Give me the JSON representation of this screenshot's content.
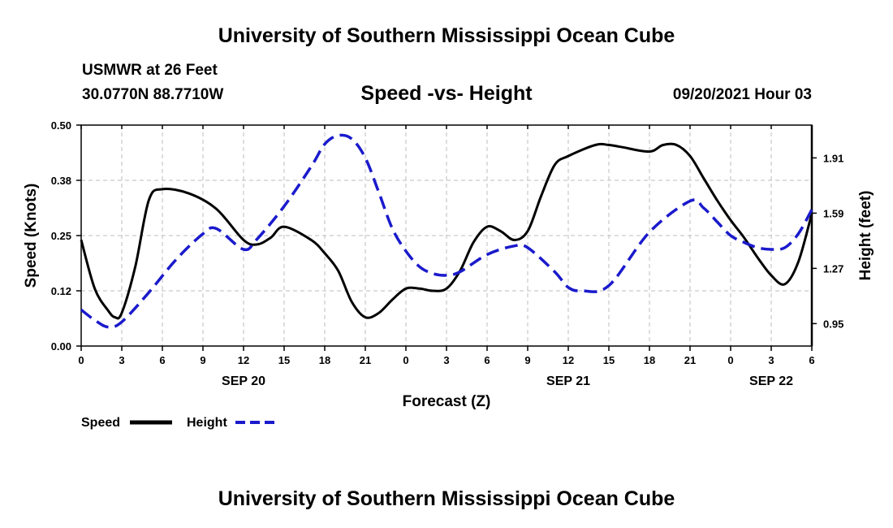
{
  "header": {
    "title": "University of Southern Mississippi Ocean Cube",
    "station": "USMWR at 26 Feet",
    "coords": "30.0770N  88.7710W",
    "chart_title": "Speed -vs- Height",
    "datetime": "09/20/2021 Hour 03"
  },
  "footer": {
    "title": "University of Southern Mississippi Ocean Cube"
  },
  "colors": {
    "speed": "#000000",
    "height": "#1a1acc",
    "grid": "#bdbdbd"
  },
  "chart_data": {
    "type": "line",
    "title": "Speed -vs- Height",
    "xlabel": "Forecast (Z)",
    "ylabel": "Speed (Knots)",
    "y2label": "Height (feet)",
    "xlim": [
      0,
      54
    ],
    "ylim": [
      0,
      0.5
    ],
    "y2lim": [
      0.82,
      2.1
    ],
    "x_ticks": [
      0,
      3,
      6,
      9,
      12,
      15,
      18,
      21,
      24,
      27,
      30,
      33,
      36,
      39,
      42,
      45,
      48,
      51,
      54
    ],
    "x_tick_labels": [
      "0",
      "3",
      "6",
      "9",
      "12",
      "15",
      "18",
      "21",
      "0",
      "3",
      "6",
      "9",
      "12",
      "15",
      "18",
      "21",
      "0",
      "3",
      "6"
    ],
    "date_labels": [
      {
        "x": 12,
        "label": "SEP 20"
      },
      {
        "x": 36,
        "label": "SEP 21"
      },
      {
        "x": 51,
        "label": "SEP 22"
      }
    ],
    "y_ticks": [
      0,
      0.125,
      0.25,
      0.375,
      0.5
    ],
    "y_tick_labels": [
      "0.00",
      "0.12",
      "0.25",
      "0.38",
      "0.50"
    ],
    "y2_ticks": [
      0.95,
      1.27,
      1.59,
      1.91
    ],
    "y2_tick_labels": [
      "0.95",
      "1.27",
      "1.59",
      "1.91"
    ],
    "grid": true,
    "legend": {
      "position": "bottom-left"
    },
    "series": [
      {
        "name": "Speed",
        "axis": "left",
        "style": "solid",
        "x": [
          0,
          1,
          2,
          2.5,
          3,
          4,
          5,
          6,
          8,
          10,
          12,
          13,
          14,
          15,
          17,
          18,
          19,
          20,
          21,
          22,
          23,
          24,
          25,
          26,
          27,
          28,
          29,
          30,
          31,
          32,
          33,
          34,
          35,
          36,
          38,
          39,
          40,
          42,
          43,
          44,
          45,
          46,
          47,
          48,
          49,
          50,
          51,
          52,
          53,
          54
        ],
        "y": [
          0.24,
          0.13,
          0.08,
          0.065,
          0.075,
          0.18,
          0.33,
          0.355,
          0.345,
          0.31,
          0.24,
          0.23,
          0.245,
          0.27,
          0.24,
          0.21,
          0.17,
          0.1,
          0.065,
          0.075,
          0.105,
          0.13,
          0.13,
          0.125,
          0.13,
          0.17,
          0.235,
          0.27,
          0.26,
          0.24,
          0.26,
          0.34,
          0.41,
          0.43,
          0.455,
          0.455,
          0.45,
          0.44,
          0.455,
          0.455,
          0.43,
          0.38,
          0.33,
          0.285,
          0.245,
          0.2,
          0.16,
          0.14,
          0.19,
          0.3
        ]
      },
      {
        "name": "Height",
        "axis": "right",
        "style": "dashed",
        "x": [
          0,
          1,
          2,
          3,
          5,
          7,
          9,
          10,
          12,
          13,
          15,
          17,
          18,
          19,
          20,
          21,
          22,
          23,
          24,
          25,
          26,
          27,
          28,
          30,
          32,
          33,
          35,
          36,
          37,
          39,
          42,
          45,
          46,
          47,
          48,
          49,
          50,
          51,
          52,
          53,
          54
        ],
        "y": [
          1.03,
          0.97,
          0.93,
          0.96,
          1.13,
          1.32,
          1.47,
          1.5,
          1.38,
          1.44,
          1.63,
          1.86,
          1.99,
          2.04,
          2.02,
          1.91,
          1.71,
          1.5,
          1.37,
          1.28,
          1.24,
          1.23,
          1.25,
          1.35,
          1.4,
          1.39,
          1.25,
          1.16,
          1.14,
          1.17,
          1.48,
          1.66,
          1.62,
          1.54,
          1.46,
          1.42,
          1.39,
          1.38,
          1.39,
          1.47,
          1.61
        ]
      }
    ]
  }
}
